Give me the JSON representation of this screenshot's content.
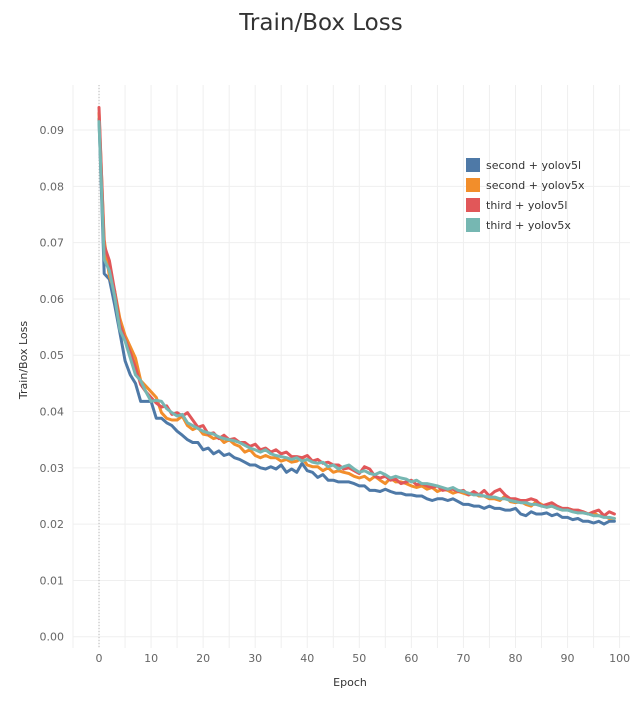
{
  "chart_data": {
    "type": "line",
    "title": "Train/Box Loss",
    "xlabel": "Epoch",
    "ylabel": "Train/Box Loss",
    "xlim": [
      -5,
      102
    ],
    "ylim": [
      -0.002,
      0.098
    ],
    "x_ticks": [
      0,
      10,
      20,
      30,
      40,
      50,
      60,
      70,
      80,
      90,
      100
    ],
    "y_ticks": [
      0.0,
      0.01,
      0.02,
      0.03,
      0.04,
      0.05,
      0.06,
      0.07,
      0.08,
      0.09
    ],
    "grid": true,
    "legend_position": "top-right",
    "series": [
      {
        "name": "second + yolov5l",
        "color": "#4e79a7",
        "x": [
          0,
          1,
          2,
          3,
          4,
          5,
          6,
          7,
          8,
          9,
          10,
          11,
          12,
          13,
          14,
          15,
          16,
          17,
          18,
          19,
          20,
          21,
          22,
          23,
          24,
          25,
          26,
          27,
          28,
          29,
          30,
          31,
          32,
          33,
          34,
          35,
          36,
          37,
          38,
          39,
          40,
          41,
          42,
          43,
          44,
          45,
          46,
          47,
          48,
          49,
          50,
          51,
          52,
          53,
          54,
          55,
          56,
          57,
          58,
          59,
          60,
          61,
          62,
          63,
          64,
          65,
          66,
          67,
          68,
          69,
          70,
          71,
          72,
          73,
          74,
          75,
          76,
          77,
          78,
          79,
          80,
          81,
          82,
          83,
          84,
          85,
          86,
          87,
          88,
          89,
          90,
          91,
          92,
          93,
          94,
          95,
          96,
          97,
          98,
          99
        ],
        "values": [
          0.092,
          0.0645,
          0.0635,
          0.059,
          0.054,
          0.049,
          0.0465,
          0.045,
          0.0418,
          0.0418,
          0.0418,
          0.0388,
          0.0388,
          0.038,
          0.0375,
          0.0365,
          0.0358,
          0.035,
          0.0345,
          0.0345,
          0.0332,
          0.0335,
          0.0325,
          0.033,
          0.0322,
          0.0325,
          0.0318,
          0.0315,
          0.031,
          0.0305,
          0.0305,
          0.03,
          0.0298,
          0.0302,
          0.0298,
          0.0305,
          0.0292,
          0.0298,
          0.0292,
          0.0308,
          0.0295,
          0.0292,
          0.0283,
          0.0288,
          0.0278,
          0.0278,
          0.0275,
          0.0275,
          0.0275,
          0.0272,
          0.0268,
          0.0268,
          0.026,
          0.026,
          0.0258,
          0.0262,
          0.0258,
          0.0255,
          0.0255,
          0.0252,
          0.0252,
          0.025,
          0.025,
          0.0245,
          0.0242,
          0.0245,
          0.0245,
          0.0242,
          0.0245,
          0.024,
          0.0235,
          0.0235,
          0.0232,
          0.0232,
          0.0228,
          0.0232,
          0.0228,
          0.0228,
          0.0225,
          0.0225,
          0.0228,
          0.0218,
          0.0215,
          0.0222,
          0.0218,
          0.0218,
          0.022,
          0.0215,
          0.0218,
          0.0212,
          0.0212,
          0.0208,
          0.021,
          0.0205,
          0.0205,
          0.0202,
          0.0205,
          0.02,
          0.0205,
          0.0205
        ]
      },
      {
        "name": "second + yolov5x",
        "color": "#f28e2b",
        "x": [
          0,
          1,
          2,
          3,
          4,
          5,
          6,
          7,
          8,
          9,
          10,
          11,
          12,
          13,
          14,
          15,
          16,
          17,
          18,
          19,
          20,
          21,
          22,
          23,
          24,
          25,
          26,
          27,
          28,
          29,
          30,
          31,
          32,
          33,
          34,
          35,
          36,
          37,
          38,
          39,
          40,
          41,
          42,
          43,
          44,
          45,
          46,
          47,
          48,
          49,
          50,
          51,
          52,
          53,
          54,
          55,
          56,
          57,
          58,
          59,
          60,
          61,
          62,
          63,
          64,
          65,
          66,
          67,
          68,
          69,
          70,
          71,
          72,
          73,
          74,
          75,
          76,
          77,
          78,
          79,
          80,
          81,
          82,
          83,
          84,
          85,
          86,
          87,
          88,
          89,
          90,
          91,
          92,
          93,
          94,
          95,
          96,
          97,
          98,
          99
        ],
        "values": [
          0.093,
          0.0705,
          0.064,
          0.0615,
          0.0565,
          0.0535,
          0.0515,
          0.0495,
          0.0455,
          0.0445,
          0.0435,
          0.0425,
          0.0398,
          0.0388,
          0.0385,
          0.0385,
          0.0392,
          0.0375,
          0.0368,
          0.0372,
          0.036,
          0.0358,
          0.0352,
          0.0355,
          0.0345,
          0.035,
          0.0342,
          0.0338,
          0.0328,
          0.0332,
          0.0322,
          0.0318,
          0.0322,
          0.0318,
          0.0318,
          0.0312,
          0.0315,
          0.031,
          0.0312,
          0.0318,
          0.0305,
          0.0302,
          0.0302,
          0.0295,
          0.03,
          0.0292,
          0.0295,
          0.0292,
          0.029,
          0.0285,
          0.0282,
          0.0285,
          0.0278,
          0.0285,
          0.0278,
          0.0272,
          0.0282,
          0.0275,
          0.0275,
          0.0272,
          0.0268,
          0.0265,
          0.0268,
          0.0262,
          0.0265,
          0.0258,
          0.0262,
          0.026,
          0.0255,
          0.0258,
          0.0255,
          0.0252,
          0.0255,
          0.025,
          0.025,
          0.0245,
          0.0245,
          0.0242,
          0.025,
          0.024,
          0.0238,
          0.024,
          0.0235,
          0.0232,
          0.024,
          0.0235,
          0.023,
          0.0232,
          0.0228,
          0.0225,
          0.0228,
          0.0225,
          0.022,
          0.0222,
          0.0218,
          0.022,
          0.0215,
          0.0215,
          0.021,
          0.021
        ]
      },
      {
        "name": "third + yolov5l",
        "color": "#e15759",
        "x": [
          0,
          1,
          2,
          3,
          4,
          5,
          6,
          7,
          8,
          9,
          10,
          11,
          12,
          13,
          14,
          15,
          16,
          17,
          18,
          19,
          20,
          21,
          22,
          23,
          24,
          25,
          26,
          27,
          28,
          29,
          30,
          31,
          32,
          33,
          34,
          35,
          36,
          37,
          38,
          39,
          40,
          41,
          42,
          43,
          44,
          45,
          46,
          47,
          48,
          49,
          50,
          51,
          52,
          53,
          54,
          55,
          56,
          57,
          58,
          59,
          60,
          61,
          62,
          63,
          64,
          65,
          66,
          67,
          68,
          69,
          70,
          71,
          72,
          73,
          74,
          75,
          76,
          77,
          78,
          79,
          80,
          81,
          82,
          83,
          84,
          85,
          86,
          87,
          88,
          89,
          90,
          91,
          92,
          93,
          94,
          95,
          96,
          97,
          98,
          99
        ],
        "values": [
          0.094,
          0.0695,
          0.0668,
          0.0615,
          0.0555,
          0.0528,
          0.0505,
          0.0478,
          0.0448,
          0.0435,
          0.0425,
          0.0415,
          0.0408,
          0.041,
          0.0395,
          0.0398,
          0.0392,
          0.0398,
          0.0385,
          0.0372,
          0.0375,
          0.036,
          0.0362,
          0.0352,
          0.0358,
          0.035,
          0.0352,
          0.0345,
          0.0345,
          0.0338,
          0.0342,
          0.0332,
          0.0335,
          0.0328,
          0.0332,
          0.0325,
          0.0328,
          0.032,
          0.032,
          0.0318,
          0.0322,
          0.0312,
          0.0315,
          0.0308,
          0.031,
          0.0305,
          0.0305,
          0.0298,
          0.03,
          0.0295,
          0.029,
          0.0302,
          0.0298,
          0.0285,
          0.0282,
          0.0285,
          0.0278,
          0.028,
          0.0272,
          0.0275,
          0.0278,
          0.027,
          0.0272,
          0.0268,
          0.0265,
          0.0268,
          0.026,
          0.0262,
          0.0262,
          0.0258,
          0.026,
          0.0252,
          0.0258,
          0.0252,
          0.026,
          0.025,
          0.0258,
          0.0262,
          0.0252,
          0.0245,
          0.0245,
          0.0242,
          0.0242,
          0.0245,
          0.0242,
          0.0232,
          0.0235,
          0.0238,
          0.0232,
          0.0228,
          0.0228,
          0.0225,
          0.0225,
          0.0222,
          0.0218,
          0.0222,
          0.0225,
          0.0215,
          0.0222,
          0.0218
        ]
      },
      {
        "name": "third + yolov5x",
        "color": "#76b7b2",
        "x": [
          0,
          1,
          2,
          3,
          4,
          5,
          6,
          7,
          8,
          9,
          10,
          11,
          12,
          13,
          14,
          15,
          16,
          17,
          18,
          19,
          20,
          21,
          22,
          23,
          24,
          25,
          26,
          27,
          28,
          29,
          30,
          31,
          32,
          33,
          34,
          35,
          36,
          37,
          38,
          39,
          40,
          41,
          42,
          43,
          44,
          45,
          46,
          47,
          48,
          49,
          50,
          51,
          52,
          53,
          54,
          55,
          56,
          57,
          58,
          59,
          60,
          61,
          62,
          63,
          64,
          65,
          66,
          67,
          68,
          69,
          70,
          71,
          72,
          73,
          74,
          75,
          76,
          77,
          78,
          79,
          80,
          81,
          82,
          83,
          84,
          85,
          86,
          87,
          88,
          89,
          90,
          91,
          92,
          93,
          94,
          95,
          96,
          97,
          98,
          99
        ],
        "values": [
          0.0915,
          0.067,
          0.065,
          0.0605,
          0.0545,
          0.0525,
          0.0495,
          0.0465,
          0.0455,
          0.0435,
          0.0418,
          0.042,
          0.0418,
          0.0405,
          0.0398,
          0.0392,
          0.0395,
          0.038,
          0.0375,
          0.037,
          0.0365,
          0.0362,
          0.036,
          0.0355,
          0.0352,
          0.035,
          0.0348,
          0.0345,
          0.034,
          0.0335,
          0.0332,
          0.0328,
          0.0332,
          0.0325,
          0.0322,
          0.032,
          0.0318,
          0.0315,
          0.0318,
          0.0312,
          0.0315,
          0.031,
          0.0308,
          0.031,
          0.0302,
          0.0305,
          0.0298,
          0.0302,
          0.0305,
          0.0298,
          0.0292,
          0.0295,
          0.029,
          0.0288,
          0.0292,
          0.0288,
          0.0282,
          0.0285,
          0.0282,
          0.028,
          0.0275,
          0.0278,
          0.0272,
          0.0272,
          0.027,
          0.0268,
          0.0265,
          0.0262,
          0.0265,
          0.026,
          0.0258,
          0.0255,
          0.0252,
          0.0252,
          0.025,
          0.0248,
          0.0248,
          0.0245,
          0.0245,
          0.0242,
          0.024,
          0.0238,
          0.0238,
          0.0235,
          0.0235,
          0.0232,
          0.023,
          0.0232,
          0.0228,
          0.0225,
          0.0225,
          0.0222,
          0.022,
          0.022,
          0.0218,
          0.0215,
          0.0215,
          0.0212,
          0.0212,
          0.021
        ]
      }
    ]
  }
}
